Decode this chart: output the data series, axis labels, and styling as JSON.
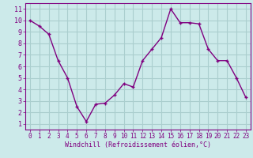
{
  "x": [
    0,
    1,
    2,
    3,
    4,
    5,
    6,
    7,
    8,
    9,
    10,
    11,
    12,
    13,
    14,
    15,
    16,
    17,
    18,
    19,
    20,
    21,
    22,
    23
  ],
  "y": [
    10,
    9.5,
    8.8,
    6.5,
    5.0,
    2.5,
    1.2,
    2.7,
    2.8,
    3.5,
    4.5,
    4.2,
    6.5,
    7.5,
    8.5,
    11.0,
    9.8,
    9.8,
    9.7,
    7.5,
    6.5,
    6.5,
    5.0,
    3.3
  ],
  "line_color": "#800080",
  "marker": "+",
  "marker_size": 3,
  "marker_linewidth": 1.0,
  "line_width": 1.0,
  "bg_color": "#cceaea",
  "grid_color": "#aacece",
  "xlabel": "Windchill (Refroidissement éolien,°C)",
  "ylabel_ticks": [
    1,
    2,
    3,
    4,
    5,
    6,
    7,
    8,
    9,
    10,
    11
  ],
  "xlim": [
    -0.5,
    23.5
  ],
  "ylim": [
    0.5,
    11.5
  ],
  "xticks": [
    0,
    1,
    2,
    3,
    4,
    5,
    6,
    7,
    8,
    9,
    10,
    11,
    12,
    13,
    14,
    15,
    16,
    17,
    18,
    19,
    20,
    21,
    22,
    23
  ],
  "axis_color": "#800080",
  "tick_fontsize": 5.5,
  "xlabel_fontsize": 6.0
}
